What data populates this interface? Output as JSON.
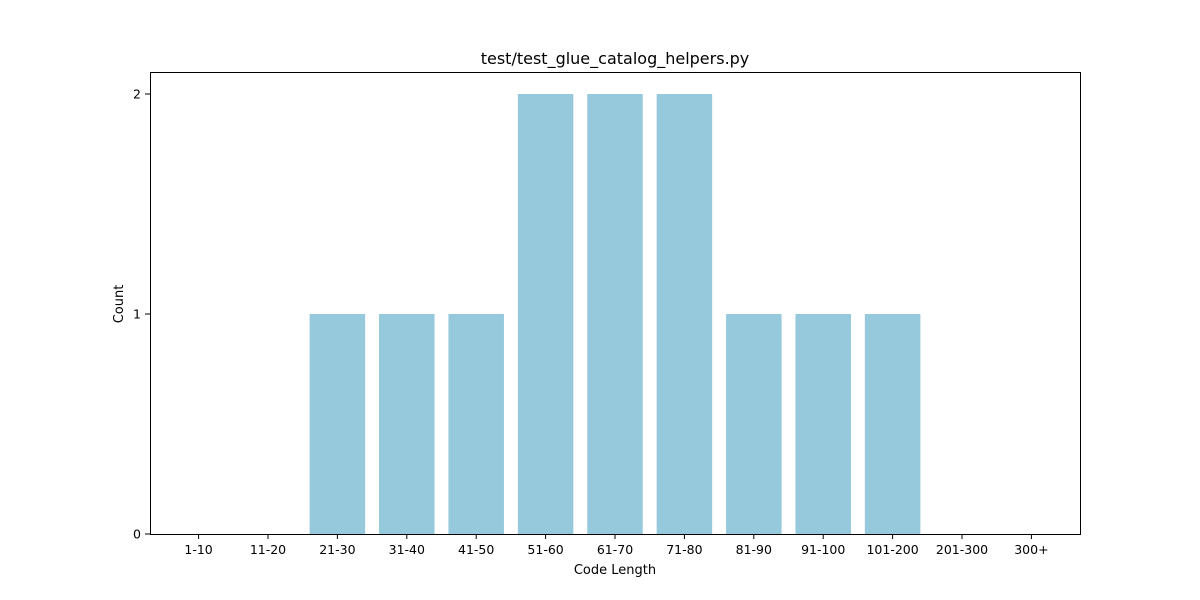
{
  "chart_data": {
    "type": "bar",
    "title": "test/test_glue_catalog_helpers.py",
    "xlabel": "Code Length",
    "ylabel": "Count",
    "categories": [
      "1-10",
      "11-20",
      "21-30",
      "31-40",
      "41-50",
      "51-60",
      "61-70",
      "71-80",
      "81-90",
      "91-100",
      "101-200",
      "201-300",
      "300+"
    ],
    "values": [
      0,
      0,
      1,
      1,
      1,
      2,
      2,
      2,
      1,
      1,
      1,
      0,
      0
    ],
    "ylim": [
      0,
      2.1
    ],
    "yticks": [
      0,
      1,
      2
    ],
    "bar_color": "#96c9dc",
    "grid": false,
    "legend": "none"
  }
}
